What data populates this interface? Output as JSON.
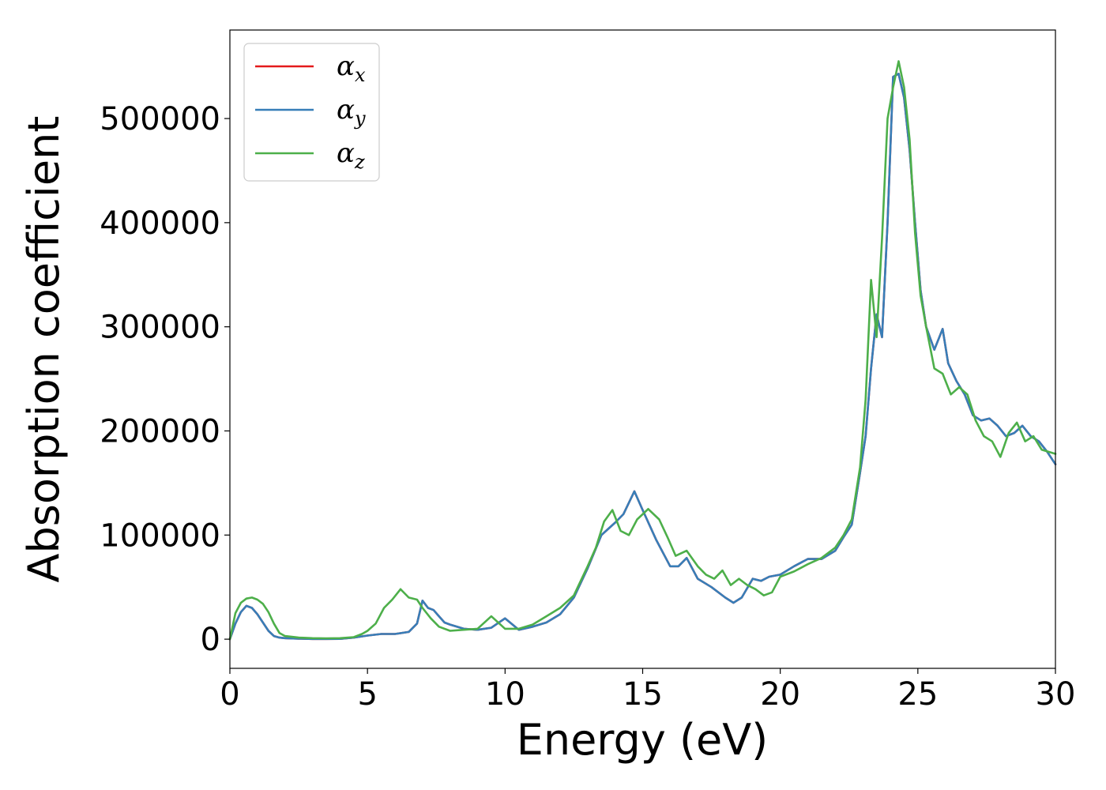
{
  "chart_data": {
    "type": "line",
    "title": "",
    "xlabel": "Energy (eV)",
    "ylabel": "Absorption coefficient",
    "xlim": [
      0,
      30
    ],
    "ylim": [
      -28000,
      585000
    ],
    "xticks": [
      0,
      5,
      10,
      15,
      20,
      25,
      30
    ],
    "xtick_labels": [
      "0",
      "5",
      "10",
      "15",
      "20",
      "25",
      "30"
    ],
    "yticks": [
      0,
      100000,
      200000,
      300000,
      400000,
      500000
    ],
    "ytick_labels": [
      "0",
      "100000",
      "200000",
      "300000",
      "400000",
      "500000"
    ],
    "grid": false,
    "legend_position": "top-left",
    "series": [
      {
        "name": "α",
        "subscript": "x",
        "color": "#e41a1c",
        "x": [
          0,
          0.2,
          0.4,
          0.6,
          0.8,
          1.0,
          1.2,
          1.4,
          1.6,
          1.8,
          2.0,
          2.5,
          3,
          3.5,
          4,
          4.5,
          5,
          5.5,
          6,
          6.5,
          6.8,
          7.0,
          7.2,
          7.4,
          7.6,
          7.8,
          8.0,
          8.5,
          9,
          9.5,
          10,
          10.5,
          11,
          11.5,
          12,
          12.5,
          13,
          13.5,
          14,
          14.3,
          14.7,
          15,
          15.5,
          16,
          16.3,
          16.6,
          17,
          17.5,
          18,
          18.3,
          18.6,
          19,
          19.3,
          19.6,
          20,
          20.5,
          21,
          21.5,
          22,
          22.3,
          22.6,
          22.9,
          23.1,
          23.3,
          23.5,
          23.7,
          23.9,
          24.1,
          24.3,
          24.5,
          24.7,
          24.9,
          25.1,
          25.3,
          25.6,
          25.9,
          26.1,
          26.4,
          26.7,
          27,
          27.3,
          27.6,
          27.9,
          28.2,
          28.5,
          28.8,
          29.1,
          29.4,
          29.7,
          30
        ],
        "values": [
          0,
          15000,
          26000,
          32000,
          30000,
          24000,
          16000,
          8000,
          3000,
          1500,
          1000,
          500,
          200,
          200,
          300,
          1500,
          3500,
          5000,
          5000,
          7000,
          15000,
          37000,
          30000,
          28000,
          22000,
          16000,
          14000,
          10000,
          9000,
          11000,
          20000,
          9000,
          12000,
          16000,
          24000,
          40000,
          68000,
          100000,
          112000,
          120000,
          142000,
          124000,
          95000,
          70000,
          70000,
          78000,
          58000,
          50000,
          40000,
          35000,
          40000,
          58000,
          56000,
          60000,
          62000,
          70000,
          77000,
          77000,
          85000,
          98000,
          110000,
          160000,
          195000,
          260000,
          312000,
          290000,
          400000,
          540000,
          543000,
          520000,
          470000,
          400000,
          335000,
          300000,
          278000,
          298000,
          265000,
          248000,
          235000,
          215000,
          210000,
          212000,
          205000,
          195000,
          198000,
          205000,
          195000,
          190000,
          180000,
          168000
        ]
      },
      {
        "name": "α",
        "subscript": "y",
        "color": "#377eb8",
        "x": [
          0,
          0.2,
          0.4,
          0.6,
          0.8,
          1.0,
          1.2,
          1.4,
          1.6,
          1.8,
          2.0,
          2.5,
          3,
          3.5,
          4,
          4.5,
          5,
          5.5,
          6,
          6.5,
          6.8,
          7.0,
          7.2,
          7.4,
          7.6,
          7.8,
          8.0,
          8.5,
          9,
          9.5,
          10,
          10.5,
          11,
          11.5,
          12,
          12.5,
          13,
          13.5,
          14,
          14.3,
          14.7,
          15,
          15.5,
          16,
          16.3,
          16.6,
          17,
          17.5,
          18,
          18.3,
          18.6,
          19,
          19.3,
          19.6,
          20,
          20.5,
          21,
          21.5,
          22,
          22.3,
          22.6,
          22.9,
          23.1,
          23.3,
          23.5,
          23.7,
          23.9,
          24.1,
          24.3,
          24.5,
          24.7,
          24.9,
          25.1,
          25.3,
          25.6,
          25.9,
          26.1,
          26.4,
          26.7,
          27,
          27.3,
          27.6,
          27.9,
          28.2,
          28.5,
          28.8,
          29.1,
          29.4,
          29.7,
          30
        ],
        "values": [
          0,
          15000,
          26000,
          32000,
          30000,
          24000,
          16000,
          8000,
          3000,
          1500,
          1000,
          500,
          200,
          200,
          300,
          1500,
          3500,
          5000,
          5000,
          7000,
          15000,
          37000,
          30000,
          28000,
          22000,
          16000,
          14000,
          10000,
          9000,
          11000,
          20000,
          9000,
          12000,
          16000,
          24000,
          40000,
          68000,
          100000,
          112000,
          120000,
          142000,
          124000,
          95000,
          70000,
          70000,
          78000,
          58000,
          50000,
          40000,
          35000,
          40000,
          58000,
          56000,
          60000,
          62000,
          70000,
          77000,
          77000,
          85000,
          98000,
          110000,
          160000,
          195000,
          260000,
          312000,
          290000,
          400000,
          540000,
          543000,
          520000,
          470000,
          400000,
          335000,
          300000,
          278000,
          298000,
          265000,
          248000,
          235000,
          215000,
          210000,
          212000,
          205000,
          195000,
          198000,
          205000,
          195000,
          190000,
          180000,
          168000
        ]
      },
      {
        "name": "α",
        "subscript": "z",
        "color": "#4daf4a",
        "x": [
          0,
          0.2,
          0.4,
          0.6,
          0.8,
          1.0,
          1.2,
          1.4,
          1.6,
          1.8,
          2.0,
          2.5,
          3,
          3.5,
          4,
          4.5,
          4.8,
          5.0,
          5.3,
          5.6,
          5.9,
          6.2,
          6.5,
          6.8,
          7.0,
          7.3,
          7.6,
          8,
          8.5,
          9,
          9.5,
          10,
          10.5,
          11,
          11.5,
          12,
          12.5,
          13,
          13.3,
          13.6,
          13.9,
          14.2,
          14.5,
          14.8,
          15.2,
          15.6,
          15.9,
          16.2,
          16.6,
          17,
          17.3,
          17.6,
          17.9,
          18.2,
          18.5,
          18.8,
          19.1,
          19.4,
          19.7,
          20,
          20.5,
          21,
          21.5,
          22,
          22.3,
          22.6,
          22.9,
          23.1,
          23.3,
          23.5,
          23.7,
          23.9,
          24.1,
          24.3,
          24.5,
          24.7,
          24.9,
          25.1,
          25.3,
          25.6,
          25.9,
          26.2,
          26.5,
          26.8,
          27.1,
          27.4,
          27.7,
          28,
          28.3,
          28.6,
          28.9,
          29.2,
          29.5,
          30
        ],
        "values": [
          0,
          25000,
          35000,
          39000,
          40000,
          38000,
          34000,
          26000,
          15000,
          6000,
          3000,
          1500,
          1000,
          800,
          1000,
          2000,
          5000,
          8000,
          15000,
          30000,
          38000,
          48000,
          40000,
          38000,
          30000,
          20000,
          12000,
          8000,
          9000,
          10000,
          22000,
          10000,
          10000,
          14000,
          22000,
          30000,
          42000,
          70000,
          88000,
          113000,
          124000,
          104000,
          100000,
          115000,
          125000,
          115000,
          98000,
          80000,
          85000,
          70000,
          62000,
          58000,
          66000,
          52000,
          58000,
          52000,
          48000,
          42000,
          45000,
          60000,
          65000,
          72000,
          78000,
          88000,
          100000,
          115000,
          165000,
          230000,
          345000,
          290000,
          385000,
          500000,
          530000,
          555000,
          530000,
          480000,
          390000,
          330000,
          300000,
          260000,
          255000,
          235000,
          242000,
          235000,
          210000,
          195000,
          190000,
          175000,
          198000,
          208000,
          190000,
          195000,
          182000,
          178000
        ]
      }
    ]
  }
}
